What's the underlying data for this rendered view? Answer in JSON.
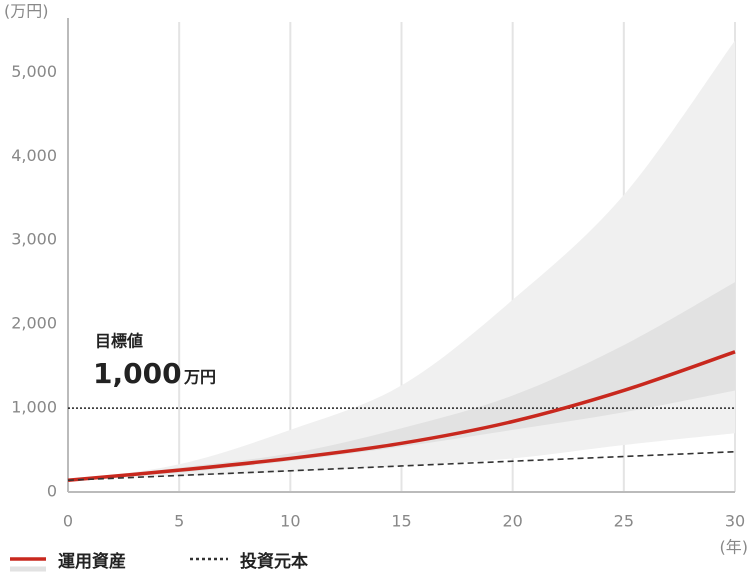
{
  "chart_data": {
    "type": "line",
    "y_axis_label": "(万円)",
    "x_axis_label": "(年)",
    "x": [
      0,
      5,
      10,
      15,
      20,
      25,
      30
    ],
    "xlim": [
      0,
      30
    ],
    "xticks": [
      0,
      5,
      10,
      15,
      20,
      25,
      30
    ],
    "ylim": [
      0,
      5600
    ],
    "yticks": [
      0,
      {
        "value": 1000,
        "label": "1,000"
      },
      {
        "value": 2000,
        "label": "2,000"
      },
      {
        "value": 3000,
        "label": "3,000"
      },
      {
        "value": 4000,
        "label": "4,000"
      },
      {
        "value": 5000,
        "label": "5,000"
      }
    ],
    "x_grid": true,
    "bands": [
      {
        "color": "#f0f0f0",
        "upper": [
          140,
          330,
          740,
          1270,
          2290,
          3540,
          5380
        ],
        "lower": [
          140,
          190,
          240,
          310,
          400,
          560,
          700
        ]
      },
      {
        "color": "#e2e2e2",
        "upper": [
          140,
          290,
          460,
          760,
          1150,
          1750,
          2500
        ],
        "lower": [
          140,
          230,
          370,
          540,
          740,
          950,
          1210
        ]
      }
    ],
    "series": [
      {
        "name": "運用資産",
        "color": "#c8281e",
        "style": "solid",
        "values": [
          140,
          260,
          400,
          580,
          840,
          1210,
          1670
        ]
      },
      {
        "name": "投資元本",
        "color": "#333333",
        "style": "dashed",
        "values": [
          140,
          197,
          253,
          310,
          367,
          423,
          480
        ]
      }
    ],
    "annotation": {
      "title": "目標値",
      "value": {
        "value": 1000,
        "label": "1,000"
      },
      "unit": "万円"
    }
  }
}
